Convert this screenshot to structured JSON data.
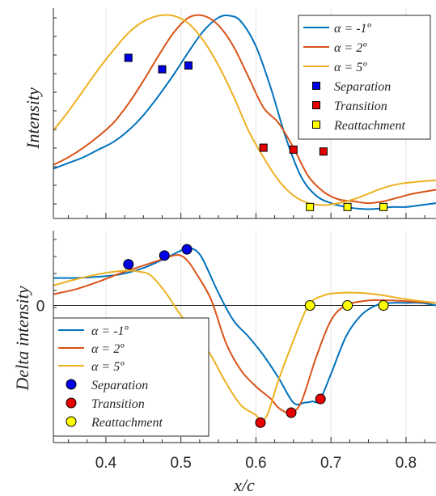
{
  "colors": {
    "alpha_m1": "#0072BD",
    "alpha_2": "#D95319",
    "alpha_5": "#EDB120",
    "separation": "#0000E6",
    "transition": "#E60000",
    "reattachment": "#FFFF00",
    "axis": "#262626",
    "grid": "#e3e3e3"
  },
  "chart_data": [
    {
      "type": "line",
      "title": "",
      "xlabel": "",
      "ylabel": "Intensity",
      "xlim": [
        0.33,
        0.84
      ],
      "ylim": [
        0,
        1.1
      ],
      "grid": "vertical",
      "legend_position": "top-right",
      "y_tick_labels": false,
      "legend": [
        "α = -1º",
        "α = 2º",
        "α = 5º",
        "Separation",
        "Transition",
        "Reattachment"
      ],
      "series": [
        {
          "name": "α = -1º",
          "color_key": "alpha_m1",
          "x": [
            0.33,
            0.35,
            0.37,
            0.39,
            0.41,
            0.43,
            0.45,
            0.47,
            0.49,
            0.51,
            0.53,
            0.55,
            0.565,
            0.58,
            0.6,
            0.62,
            0.64,
            0.66,
            0.68,
            0.7,
            0.72,
            0.74,
            0.76,
            0.78,
            0.8,
            0.82,
            0.84
          ],
          "y": [
            0.26,
            0.29,
            0.32,
            0.36,
            0.4,
            0.46,
            0.54,
            0.64,
            0.75,
            0.87,
            0.98,
            1.05,
            1.06,
            1.03,
            0.9,
            0.68,
            0.42,
            0.22,
            0.12,
            0.08,
            0.06,
            0.05,
            0.05,
            0.06,
            0.06,
            0.07,
            0.08
          ]
        },
        {
          "name": "α = 2º",
          "color_key": "alpha_2",
          "x": [
            0.33,
            0.35,
            0.37,
            0.39,
            0.41,
            0.43,
            0.45,
            0.47,
            0.49,
            0.51,
            0.53,
            0.55,
            0.57,
            0.59,
            0.61,
            0.63,
            0.65,
            0.67,
            0.69,
            0.71,
            0.73,
            0.75,
            0.77,
            0.79,
            0.81,
            0.84
          ],
          "y": [
            0.28,
            0.32,
            0.37,
            0.43,
            0.5,
            0.6,
            0.72,
            0.85,
            0.97,
            1.05,
            1.06,
            1.01,
            0.9,
            0.74,
            0.58,
            0.5,
            0.37,
            0.22,
            0.14,
            0.1,
            0.09,
            0.08,
            0.09,
            0.11,
            0.13,
            0.15
          ]
        },
        {
          "name": "α = 5º",
          "color_key": "alpha_5",
          "x": [
            0.33,
            0.35,
            0.37,
            0.39,
            0.41,
            0.43,
            0.45,
            0.47,
            0.49,
            0.51,
            0.53,
            0.55,
            0.57,
            0.59,
            0.61,
            0.63,
            0.65,
            0.67,
            0.69,
            0.71,
            0.73,
            0.75,
            0.77,
            0.79,
            0.81,
            0.84
          ],
          "y": [
            0.46,
            0.56,
            0.67,
            0.78,
            0.88,
            0.97,
            1.03,
            1.06,
            1.06,
            1.02,
            0.93,
            0.8,
            0.64,
            0.46,
            0.32,
            0.2,
            0.12,
            0.08,
            0.07,
            0.08,
            0.1,
            0.13,
            0.16,
            0.18,
            0.19,
            0.2
          ]
        }
      ],
      "markers": [
        {
          "name": "Separation",
          "marker": "square",
          "color_key": "separation",
          "x": [
            0.43,
            0.475,
            0.51
          ],
          "y": [
            0.84,
            0.78,
            0.8
          ]
        },
        {
          "name": "Transition",
          "marker": "square",
          "color_key": "transition",
          "x": [
            0.61,
            0.65,
            0.69
          ],
          "y": [
            0.37,
            0.36,
            0.35
          ]
        },
        {
          "name": "Reattachment",
          "marker": "square",
          "color_key": "reattachment",
          "x": [
            0.672,
            0.722,
            0.77
          ],
          "y": [
            0.06,
            0.06,
            0.06
          ]
        }
      ]
    },
    {
      "type": "line",
      "title": "",
      "xlabel": "x/c",
      "ylabel": "Delta intensity",
      "xlim": [
        0.33,
        0.84
      ],
      "ylim": [
        -1.1,
        0.6
      ],
      "x_ticks": [
        0.4,
        0.5,
        0.6,
        0.7,
        0.8
      ],
      "x_tick_labels": [
        "0.4",
        "0.5",
        "0.6",
        "0.7",
        "0.8"
      ],
      "y_ticks": [
        0
      ],
      "y_tick_labels": [
        "0"
      ],
      "grid": "vertical",
      "zero_line": true,
      "legend_position": "bottom-left",
      "legend": [
        "α = -1º",
        "α = 2º",
        "α = 5º",
        "Separation",
        "Transition",
        "Reattachment"
      ],
      "series": [
        {
          "name": "α = -1º",
          "color_key": "alpha_m1",
          "x": [
            0.33,
            0.36,
            0.39,
            0.42,
            0.45,
            0.48,
            0.5,
            0.51,
            0.52,
            0.53,
            0.55,
            0.57,
            0.59,
            0.61,
            0.63,
            0.65,
            0.665,
            0.675,
            0.685,
            0.7,
            0.72,
            0.74,
            0.76,
            0.78,
            0.8,
            0.82,
            0.84
          ],
          "y": [
            0.22,
            0.22,
            0.23,
            0.25,
            0.3,
            0.38,
            0.44,
            0.46,
            0.44,
            0.36,
            0.1,
            -0.12,
            -0.25,
            -0.4,
            -0.58,
            -0.78,
            -0.78,
            -0.77,
            -0.76,
            -0.55,
            -0.25,
            -0.08,
            0.0,
            0.02,
            0.02,
            0.02,
            0.0
          ]
        },
        {
          "name": "α = 2º",
          "color_key": "alpha_2",
          "x": [
            0.33,
            0.36,
            0.39,
            0.42,
            0.45,
            0.47,
            0.49,
            0.5,
            0.51,
            0.52,
            0.54,
            0.56,
            0.58,
            0.6,
            0.62,
            0.63,
            0.645,
            0.66,
            0.68,
            0.7,
            0.72,
            0.75,
            0.78,
            0.81,
            0.84
          ],
          "y": [
            0.09,
            0.13,
            0.19,
            0.26,
            0.32,
            0.36,
            0.4,
            0.4,
            0.35,
            0.26,
            0.05,
            -0.3,
            -0.52,
            -0.65,
            -0.75,
            -0.82,
            -0.86,
            -0.78,
            -0.42,
            -0.12,
            0.0,
            0.04,
            0.04,
            0.03,
            0.02
          ]
        },
        {
          "name": "α = 5º",
          "color_key": "alpha_5",
          "x": [
            0.33,
            0.36,
            0.39,
            0.41,
            0.43,
            0.445,
            0.46,
            0.48,
            0.5,
            0.52,
            0.54,
            0.56,
            0.58,
            0.6,
            0.605,
            0.615,
            0.63,
            0.65,
            0.67,
            0.69,
            0.71,
            0.74,
            0.77,
            0.8,
            0.84
          ],
          "y": [
            0.16,
            0.21,
            0.25,
            0.27,
            0.28,
            0.27,
            0.24,
            0.1,
            -0.08,
            -0.22,
            -0.4,
            -0.62,
            -0.8,
            -0.88,
            -0.92,
            -0.88,
            -0.6,
            -0.28,
            0.0,
            0.08,
            0.1,
            0.1,
            0.08,
            0.05,
            0.02
          ]
        }
      ],
      "markers": [
        {
          "name": "Separation",
          "marker": "circle",
          "color_key": "separation",
          "x": [
            0.43,
            0.478,
            0.508
          ],
          "y": [
            0.33,
            0.4,
            0.45
          ]
        },
        {
          "name": "Transition",
          "marker": "circle",
          "color_key": "transition",
          "x": [
            0.606,
            0.647,
            0.686
          ],
          "y": [
            -0.94,
            -0.86,
            -0.75
          ]
        },
        {
          "name": "Reattachment",
          "marker": "circle",
          "color_key": "reattachment",
          "x": [
            0.672,
            0.722,
            0.77
          ],
          "y": [
            0.0,
            0.0,
            0.0
          ]
        }
      ]
    }
  ]
}
